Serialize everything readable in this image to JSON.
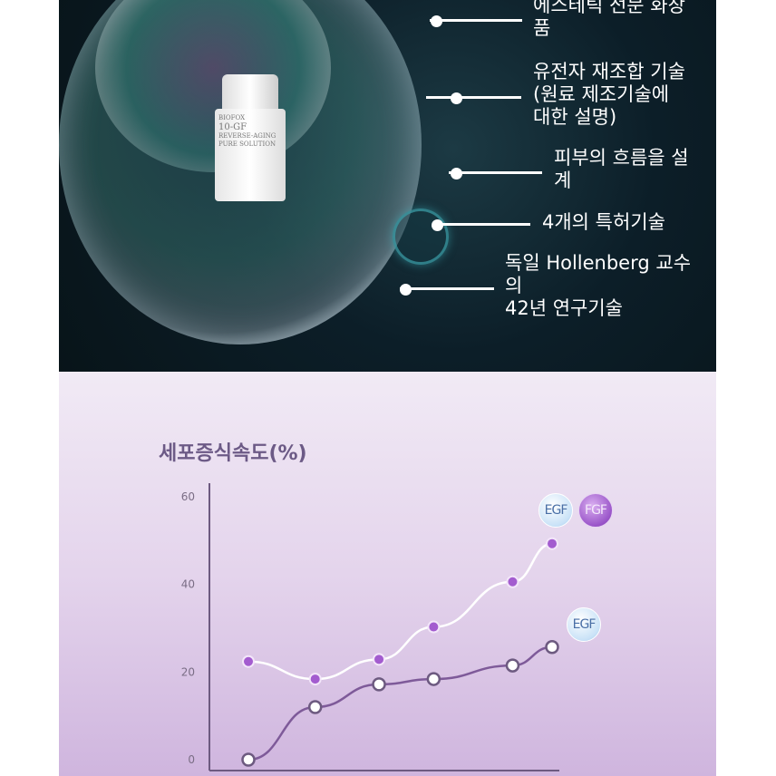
{
  "hero": {
    "product_label": [
      "BIOFOX",
      "10-GF",
      "REVERSE-AGING",
      "PURE SOLUTION"
    ],
    "callouts": [
      "에스테틱 전문 화장\n품",
      "유전자 재조합 기술\n(원료 제조기술에\n대한 설명)",
      "피부의 흐름을 설\n계",
      "4개의 특허기술",
      "독일 Hollenberg 교수\n의\n42년 연구기술"
    ]
  },
  "chart_data": {
    "type": "line",
    "title": "세포증식속도(%)",
    "xlabel": "",
    "ylabel": "",
    "ylim": [
      0,
      60
    ],
    "yticks": [
      0,
      20,
      40,
      60
    ],
    "x": [
      0,
      22,
      43,
      61,
      87,
      100
    ],
    "series": [
      {
        "name": "EGF FGF",
        "labels": [
          "EGF",
          "FGF"
        ],
        "values": [
          22.4,
          18.4,
          22.9,
          30.3,
          40.6,
          49.3
        ],
        "color": "#a35ccf",
        "line_color": "#ffffff"
      },
      {
        "name": "EGF",
        "labels": [
          "EGF"
        ],
        "values": [
          0,
          12,
          17.2,
          18.4,
          21.5,
          25.7
        ],
        "color": "#ffffff",
        "line_color": "#7e5a99"
      }
    ],
    "grid": false
  }
}
